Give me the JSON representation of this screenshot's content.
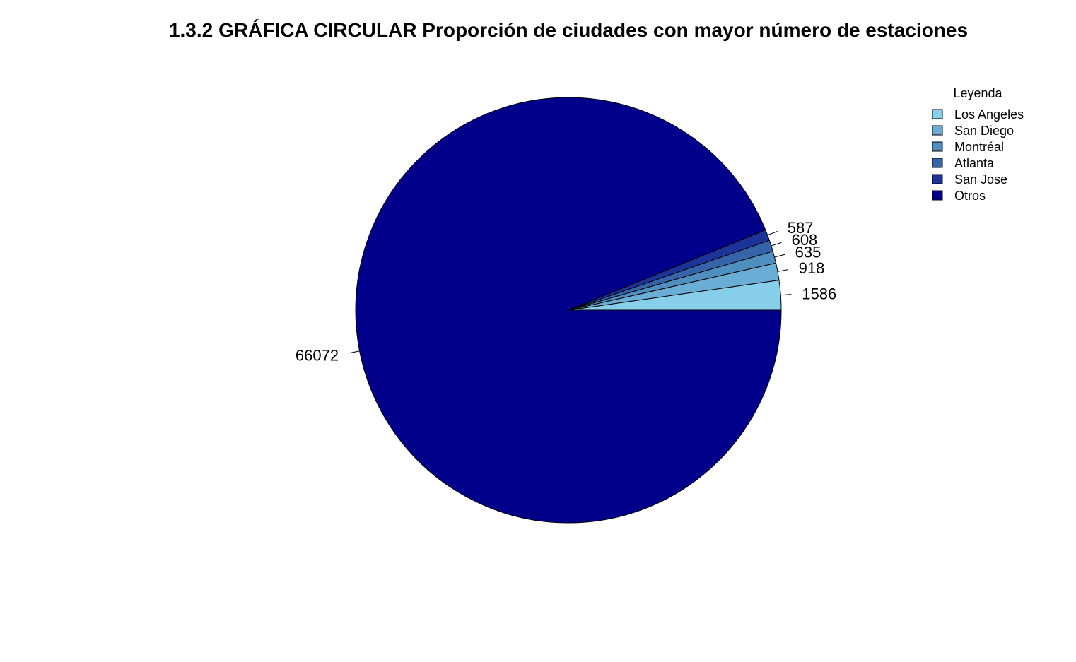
{
  "chart_data": {
    "type": "pie",
    "title": "1.3.2 GRÁFICA CIRCULAR Proporción de ciudades con mayor número de estaciones",
    "categories": [
      "Los Angeles",
      "San Diego",
      "Montréal",
      "Atlanta",
      "San Jose",
      "Otros"
    ],
    "values": [
      1586,
      918,
      635,
      608,
      587,
      66072
    ],
    "labels": [
      "1586",
      "918",
      "635",
      "608",
      "587",
      "66072"
    ],
    "colors": [
      "#87ceeb",
      "#6aaed6",
      "#4f8fc0",
      "#3565a8",
      "#1c3399",
      "#00008b"
    ],
    "start_angle": "0° (3 o'clock), counter-clockwise",
    "legend": {
      "title": "Leyenda",
      "position": "top-right",
      "entries": [
        "Los Angeles",
        "San Diego",
        "Montréal",
        "Atlanta",
        "San Jose",
        "Otros"
      ]
    }
  }
}
